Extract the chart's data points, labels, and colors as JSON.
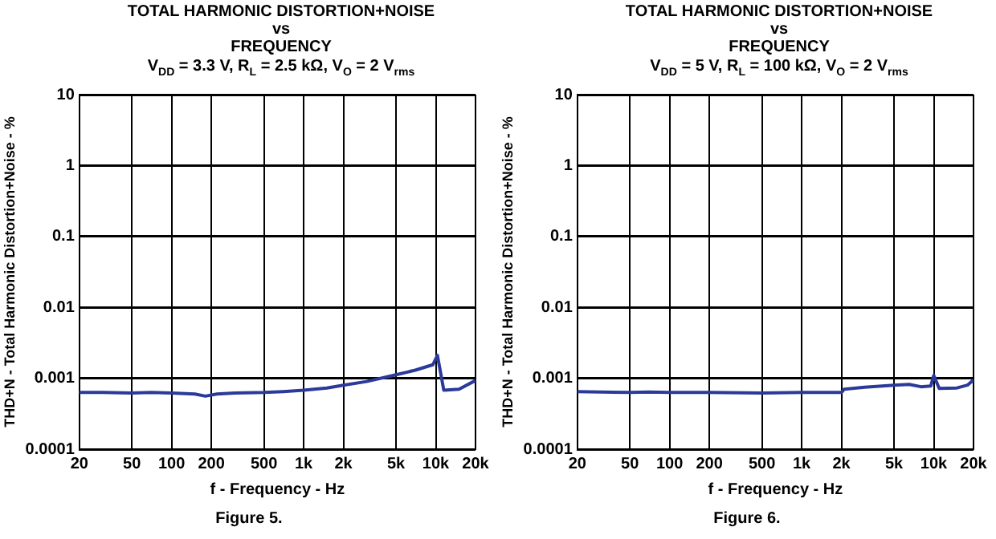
{
  "chart_data": [
    {
      "type": "line",
      "title": "TOTAL HARMONIC DISTORTION+NOISE\nvs\nFREQUENCY",
      "subtitle": "V$_{DD}$ = 3.3 V, R$_{L}$ = 2.5 kΩ, V$_{O}$ = 2 V$_{rms}$",
      "xlabel": "f - Frequency - Hz",
      "ylabel": "THD+N - Total Harmonic Distortion+Noise - %",
      "annotations": [
        "Figure 5."
      ],
      "x": [
        20,
        30,
        50,
        70,
        100,
        150,
        180,
        220,
        300,
        500,
        700,
        1000,
        1500,
        2000,
        3000,
        5000,
        7000,
        9500,
        10300,
        11500,
        15000,
        20000
      ],
      "series": [
        {
          "color": "#2b3a9a",
          "values": [
            0.00063,
            0.00063,
            0.00062,
            0.00063,
            0.00062,
            0.0006,
            0.00056,
            0.0006,
            0.00062,
            0.00063,
            0.00065,
            0.00068,
            0.00073,
            0.0008,
            0.0009,
            0.00112,
            0.0013,
            0.00155,
            0.0021,
            0.00068,
            0.0007,
            0.00093
          ]
        }
      ],
      "xlim": [
        20,
        20000
      ],
      "ylim": [
        0.0001,
        10
      ],
      "xticks": [
        20,
        50,
        100,
        200,
        500,
        {
          "value": 1000,
          "label": "1k"
        },
        {
          "value": 2000,
          "label": "2k"
        },
        {
          "value": 5000,
          "label": "5k"
        },
        {
          "value": 10000,
          "label": "10k"
        },
        {
          "value": 20000,
          "label": "20k"
        }
      ],
      "yticks": [
        0.0001,
        0.001,
        0.01,
        0.1,
        1,
        10
      ],
      "log": "xy",
      "grid": true,
      "marker": "none",
      "line_style": "solid"
    },
    {
      "type": "line",
      "title": "TOTAL HARMONIC DISTORTION+NOISE\nvs\nFREQUENCY",
      "subtitle": "V$_{DD}$ = 5 V, R$_{L}$ = 100 kΩ, V$_{O}$ = 2 V$_{rms}$",
      "xlabel": "f - Frequency - Hz",
      "ylabel": "THD+N - Total Harmonic Distortion+Noise - %",
      "annotations": [
        "Figure 6."
      ],
      "x": [
        20,
        30,
        50,
        70,
        100,
        200,
        500,
        1000,
        2000,
        2100,
        3000,
        5000,
        6500,
        8000,
        9500,
        10000,
        11000,
        15000,
        18000,
        20000
      ],
      "series": [
        {
          "color": "#2b3a9a",
          "values": [
            0.00065,
            0.00064,
            0.00063,
            0.00064,
            0.00063,
            0.00063,
            0.00062,
            0.00063,
            0.00063,
            0.0007,
            0.00075,
            0.0008,
            0.00082,
            0.00076,
            0.00078,
            0.0011,
            0.00072,
            0.00073,
            0.0008,
            0.00095
          ]
        }
      ],
      "xlim": [
        20,
        20000
      ],
      "ylim": [
        0.0001,
        10
      ],
      "xticks": [
        20,
        50,
        100,
        200,
        500,
        {
          "value": 1000,
          "label": "1k"
        },
        {
          "value": 2000,
          "label": "2k"
        },
        {
          "value": 5000,
          "label": "5k"
        },
        {
          "value": 10000,
          "label": "10k"
        },
        {
          "value": 20000,
          "label": "20k"
        }
      ],
      "yticks": [
        0.0001,
        0.001,
        0.01,
        0.1,
        1,
        10
      ],
      "log": "xy",
      "grid": true,
      "marker": "none",
      "line_style": "solid"
    }
  ]
}
